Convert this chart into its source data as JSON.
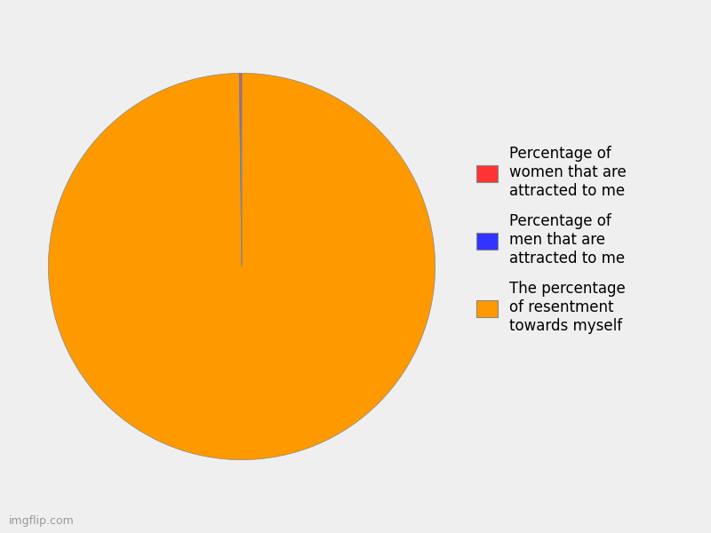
{
  "slices": [
    {
      "label": "The percentage\nof resentment\ntowards myself",
      "value": 99.8,
      "color": "#FF9900"
    },
    {
      "label": "Percentage of\nmen that are\nattracted to me",
      "value": 0.1,
      "color": "#3333FF"
    },
    {
      "label": "Percentage of\nwomen that are\nattracted to me",
      "value": 0.1,
      "color": "#FF3333"
    }
  ],
  "background_color": "#EFEFEF",
  "legend_fontsize": 12,
  "figsize": [
    8.0,
    6.0
  ]
}
